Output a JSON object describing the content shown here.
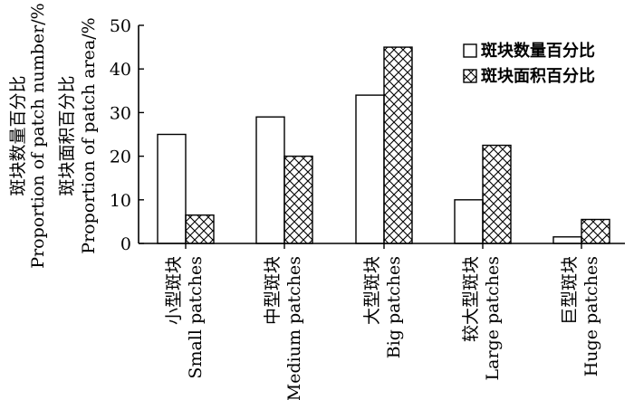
{
  "chart_data": {
    "type": "bar",
    "categories": [
      {
        "zh": "小型斑块",
        "en": "Small patches"
      },
      {
        "zh": "中型斑块",
        "en": "Medium patches"
      },
      {
        "zh": "大型斑块",
        "en": "Big patches"
      },
      {
        "zh": "较大型斑块",
        "en": "Large patches"
      },
      {
        "zh": "巨型斑块",
        "en": "Huge patches"
      }
    ],
    "series": [
      {
        "name": "斑块数量百分比",
        "fill": "plain",
        "values": [
          25,
          29,
          34,
          10,
          1.5
        ]
      },
      {
        "name": "斑块面积百分比",
        "fill": "crosshatch",
        "values": [
          6.5,
          20,
          45,
          22.5,
          5.5
        ]
      }
    ],
    "ylabel_lines": [
      "斑块数量百分比",
      "Proportion of patch number/%",
      "斑块面积百分比",
      "Proportion of patch area/%"
    ],
    "ylim": [
      0,
      50
    ],
    "yticks": [
      0,
      10,
      20,
      30,
      40,
      50
    ],
    "legend_position": "top-right",
    "grid": false
  }
}
